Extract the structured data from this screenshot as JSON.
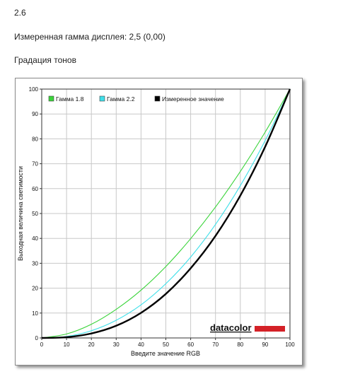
{
  "header": {
    "section_number": "2.6",
    "measured_gamma": "Измеренная гамма дисплея: 2,5 (0,00)",
    "section_title": "Градация тонов"
  },
  "branding": {
    "logo_text": "datacolor",
    "logo_color": "#d42127"
  },
  "chart_data": {
    "type": "line",
    "title": "",
    "xlabel": "Введите значение RGB",
    "ylabel": "Выходная величина светимости",
    "xlim": [
      0,
      100
    ],
    "ylim": [
      0,
      100
    ],
    "x_ticks": [
      0,
      10,
      20,
      30,
      40,
      50,
      60,
      70,
      80,
      90,
      100
    ],
    "y_ticks": [
      0,
      10,
      20,
      30,
      40,
      50,
      60,
      70,
      80,
      90,
      100
    ],
    "grid": true,
    "legend_position": "top-left",
    "x": [
      0,
      10,
      20,
      30,
      40,
      50,
      60,
      70,
      80,
      90,
      100
    ],
    "series": [
      {
        "name": "Гамма 1.8",
        "color": "#3ad43a",
        "values": [
          0,
          1.6,
          5.5,
          11.5,
          19.2,
          28.7,
          39.9,
          52.6,
          66.9,
          82.7,
          100
        ]
      },
      {
        "name": "Гамма 2.2",
        "color": "#3fe0ea",
        "values": [
          0,
          0.6,
          2.9,
          7.1,
          13.3,
          21.8,
          32.5,
          45.6,
          61.2,
          79.3,
          100
        ]
      },
      {
        "name": "Измеренное значение",
        "color": "#000000",
        "values": [
          0,
          0.3,
          1.8,
          4.9,
          10.1,
          17.7,
          28.0,
          41.0,
          57.2,
          76.8,
          100
        ]
      }
    ]
  }
}
